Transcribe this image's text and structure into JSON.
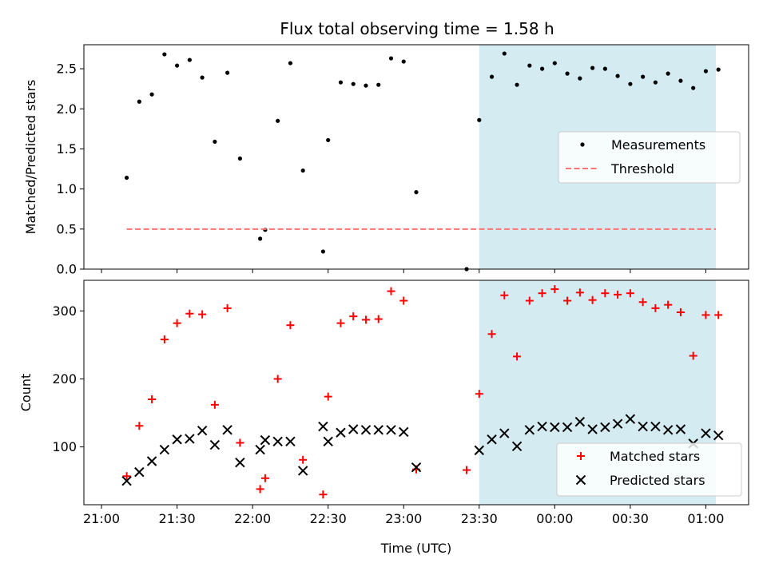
{
  "chart_data": [
    {
      "type": "scatter",
      "title": "Flux total observing time = 1.58 h",
      "xlabel": "",
      "ylabel": "Matched/Predicted stars",
      "ylim": [
        0,
        2.8
      ],
      "yticks": [
        "0.0",
        "0.5",
        "1.0",
        "1.5",
        "2.0",
        "2.5"
      ],
      "shaded_region": {
        "x_start": "23:30",
        "x_end": "01:04",
        "color": "#add8e6"
      },
      "legend_position": "center-right",
      "series": [
        {
          "name": "Measurements",
          "marker": "dot",
          "color": "#000000",
          "points": [
            [
              "21:10",
              1.14
            ],
            [
              "21:15",
              2.09
            ],
            [
              "21:20",
              2.18
            ],
            [
              "21:25",
              2.68
            ],
            [
              "21:30",
              2.54
            ],
            [
              "21:35",
              2.61
            ],
            [
              "21:40",
              2.39
            ],
            [
              "21:45",
              1.59
            ],
            [
              "21:50",
              2.45
            ],
            [
              "21:55",
              1.38
            ],
            [
              "22:03",
              0.38
            ],
            [
              "22:05",
              0.49
            ],
            [
              "22:10",
              1.85
            ],
            [
              "22:15",
              2.57
            ],
            [
              "22:20",
              1.23
            ],
            [
              "22:28",
              0.22
            ],
            [
              "22:30",
              1.61
            ],
            [
              "22:35",
              2.33
            ],
            [
              "22:40",
              2.31
            ],
            [
              "22:45",
              2.29
            ],
            [
              "22:50",
              2.3
            ],
            [
              "22:55",
              2.63
            ],
            [
              "23:00",
              2.59
            ],
            [
              "23:05",
              0.96
            ],
            [
              "23:25",
              0.0
            ],
            [
              "23:30",
              1.86
            ],
            [
              "23:35",
              2.4
            ],
            [
              "23:40",
              2.69
            ],
            [
              "23:45",
              2.3
            ],
            [
              "23:50",
              2.54
            ],
            [
              "23:55",
              2.5
            ],
            [
              "00:00",
              2.57
            ],
            [
              "00:05",
              2.44
            ],
            [
              "00:10",
              2.38
            ],
            [
              "00:15",
              2.51
            ],
            [
              "00:20",
              2.5
            ],
            [
              "00:25",
              2.41
            ],
            [
              "00:30",
              2.31
            ],
            [
              "00:35",
              2.4
            ],
            [
              "00:40",
              2.33
            ],
            [
              "00:45",
              2.44
            ],
            [
              "00:50",
              2.35
            ],
            [
              "00:55",
              2.26
            ],
            [
              "01:00",
              2.47
            ],
            [
              "01:05",
              2.49
            ]
          ]
        },
        {
          "name": "Threshold",
          "marker": "dashed-line",
          "color": "#ff7373",
          "points": [
            [
              "21:10",
              0.5
            ],
            [
              "01:04",
              0.5
            ]
          ]
        }
      ]
    },
    {
      "type": "scatter",
      "title": "",
      "xlabel": "Time (UTC)",
      "ylabel": "Count",
      "ylim": [
        15,
        345
      ],
      "yticks": [
        "100",
        "200",
        "300"
      ],
      "xticks": [
        "21:00",
        "21:30",
        "22:00",
        "22:30",
        "23:00",
        "23:30",
        "00:00",
        "00:30",
        "01:00"
      ],
      "shaded_region": {
        "x_start": "23:30",
        "x_end": "01:04",
        "color": "#add8e6"
      },
      "legend_position": "lower-right",
      "series": [
        {
          "name": "Matched stars",
          "marker": "plus",
          "color": "#ff0000",
          "points": [
            [
              "21:10",
              57
            ],
            [
              "21:15",
              131
            ],
            [
              "21:20",
              170
            ],
            [
              "21:25",
              258
            ],
            [
              "21:30",
              282
            ],
            [
              "21:35",
              296
            ],
            [
              "21:40",
              295
            ],
            [
              "21:45",
              162
            ],
            [
              "21:50",
              304
            ],
            [
              "21:55",
              106
            ],
            [
              "22:03",
              38
            ],
            [
              "22:05",
              54
            ],
            [
              "22:10",
              200
            ],
            [
              "22:15",
              279
            ],
            [
              "22:20",
              81
            ],
            [
              "22:28",
              30
            ],
            [
              "22:30",
              174
            ],
            [
              "22:35",
              282
            ],
            [
              "22:40",
              292
            ],
            [
              "22:45",
              287
            ],
            [
              "22:50",
              288
            ],
            [
              "22:55",
              329
            ],
            [
              "23:00",
              315
            ],
            [
              "23:05",
              67
            ],
            [
              "23:25",
              66
            ],
            [
              "23:30",
              178
            ],
            [
              "23:35",
              266
            ],
            [
              "23:40",
              323
            ],
            [
              "23:45",
              233
            ],
            [
              "23:50",
              315
            ],
            [
              "23:55",
              326
            ],
            [
              "00:00",
              332
            ],
            [
              "00:05",
              315
            ],
            [
              "00:10",
              327
            ],
            [
              "00:15",
              316
            ],
            [
              "00:20",
              326
            ],
            [
              "00:25",
              324
            ],
            [
              "00:30",
              326
            ],
            [
              "00:35",
              313
            ],
            [
              "00:40",
              304
            ],
            [
              "00:45",
              309
            ],
            [
              "00:50",
              298
            ],
            [
              "00:55",
              234
            ],
            [
              "01:00",
              294
            ],
            [
              "01:05",
              294
            ]
          ]
        },
        {
          "name": "Predicted stars",
          "marker": "cross",
          "color": "#000000",
          "points": [
            [
              "21:10",
              50
            ],
            [
              "21:15",
              63
            ],
            [
              "21:20",
              79
            ],
            [
              "21:25",
              96
            ],
            [
              "21:30",
              111
            ],
            [
              "21:35",
              112
            ],
            [
              "21:40",
              124
            ],
            [
              "21:45",
              103
            ],
            [
              "21:50",
              125
            ],
            [
              "21:55",
              77
            ],
            [
              "22:03",
              96
            ],
            [
              "22:05",
              110
            ],
            [
              "22:10",
              108
            ],
            [
              "22:15",
              108
            ],
            [
              "22:20",
              65
            ],
            [
              "22:28",
              130
            ],
            [
              "22:30",
              108
            ],
            [
              "22:35",
              121
            ],
            [
              "22:40",
              126
            ],
            [
              "22:45",
              125
            ],
            [
              "22:50",
              125
            ],
            [
              "22:55",
              125
            ],
            [
              "23:00",
              122
            ],
            [
              "23:05",
              70
            ],
            [
              "23:30",
              95
            ],
            [
              "23:35",
              111
            ],
            [
              "23:40",
              120
            ],
            [
              "23:45",
              101
            ],
            [
              "23:50",
              125
            ],
            [
              "23:55",
              130
            ],
            [
              "00:00",
              129
            ],
            [
              "00:05",
              129
            ],
            [
              "00:10",
              137
            ],
            [
              "00:15",
              126
            ],
            [
              "00:20",
              129
            ],
            [
              "00:25",
              134
            ],
            [
              "00:30",
              141
            ],
            [
              "00:35",
              130
            ],
            [
              "00:40",
              130
            ],
            [
              "00:45",
              125
            ],
            [
              "00:50",
              126
            ],
            [
              "00:55",
              105
            ],
            [
              "01:00",
              120
            ],
            [
              "01:05",
              117
            ]
          ]
        }
      ]
    }
  ]
}
